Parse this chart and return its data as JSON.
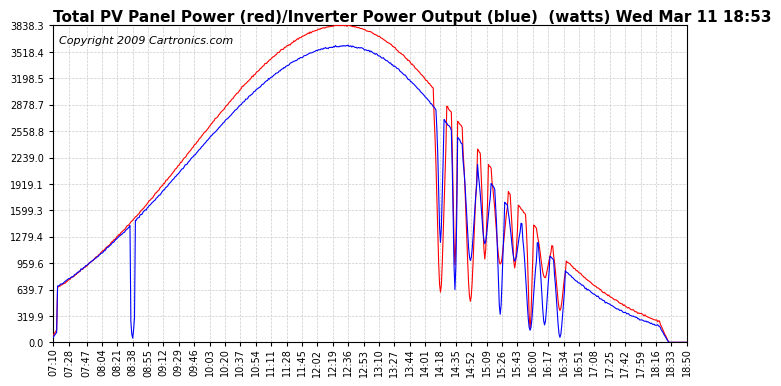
{
  "title": "Total PV Panel Power (red)/Inverter Power Output (blue)  (watts) Wed Mar 11 18:53",
  "copyright": "Copyright 2009 Cartronics.com",
  "background_color": "#ffffff",
  "plot_bg_color": "#ffffff",
  "grid_color": "#cccccc",
  "line_color_red": "#ff0000",
  "line_color_blue": "#0000ff",
  "ymax": 3838.3,
  "yticks": [
    0.0,
    319.9,
    639.7,
    959.6,
    1279.4,
    1599.3,
    1919.1,
    2239.0,
    2558.8,
    2878.7,
    3198.5,
    3518.4,
    3838.3
  ],
  "xtick_labels": [
    "07:10",
    "07:28",
    "07:47",
    "08:04",
    "08:21",
    "08:38",
    "08:55",
    "09:12",
    "09:29",
    "09:46",
    "10:03",
    "10:20",
    "10:37",
    "10:54",
    "11:11",
    "11:28",
    "11:45",
    "12:02",
    "12:19",
    "12:36",
    "12:53",
    "13:10",
    "13:27",
    "13:44",
    "14:01",
    "14:18",
    "14:35",
    "14:52",
    "15:09",
    "15:26",
    "15:43",
    "16:00",
    "16:17",
    "16:34",
    "16:51",
    "17:08",
    "17:25",
    "17:42",
    "17:59",
    "18:16",
    "18:33",
    "18:50"
  ],
  "title_fontsize": 11,
  "tick_fontsize": 7,
  "copyright_fontsize": 8
}
